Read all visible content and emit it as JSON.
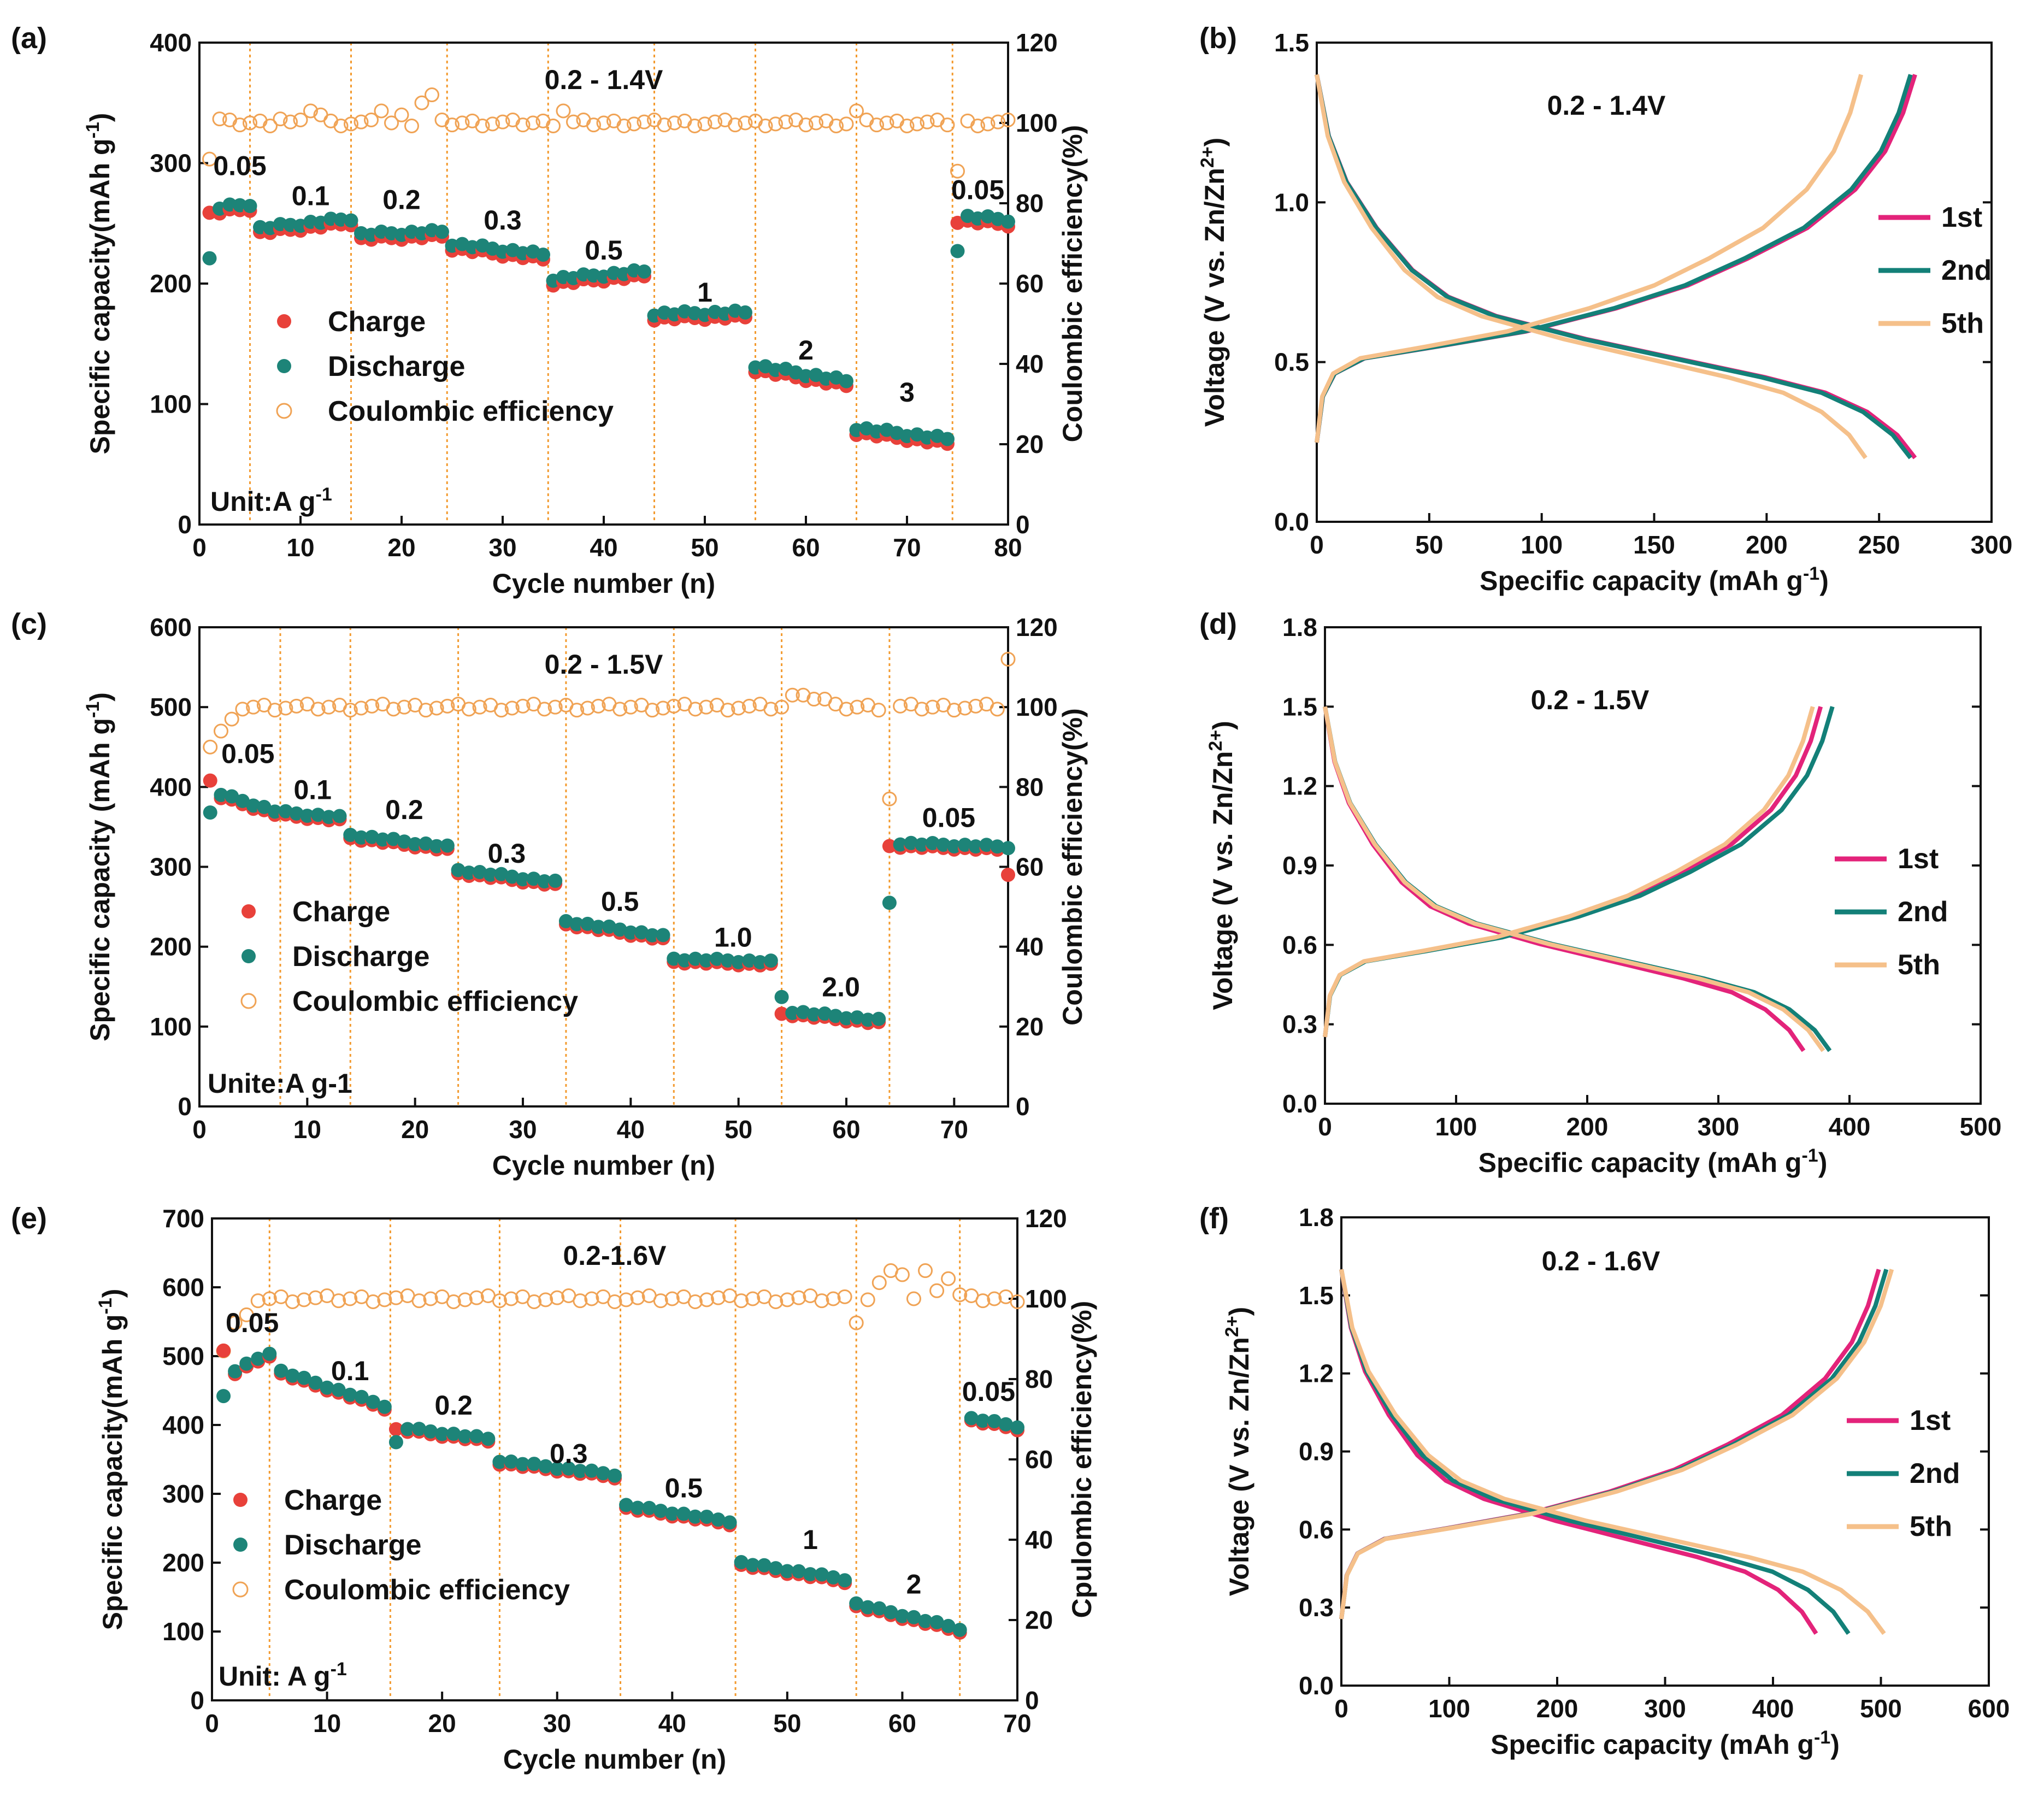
{
  "colors": {
    "charge": "#e8413a",
    "discharge": "#1d8478",
    "ce": "#f0a355",
    "divider": "#f39a2e",
    "c1st": "#e3237a",
    "c2nd": "#138078",
    "c5th": "#f5c08a",
    "axis": "#111111"
  },
  "chart_data": [
    {
      "panel": "(a)",
      "type": "scatter",
      "title": "0.2 - 1.4V",
      "xlabel": "Cycle number (n)",
      "ylabel": "Specific capacity(mAh g-1)",
      "ylabel_parts": [
        "Specific capacity(mAh g",
        "-1",
        ")"
      ],
      "y2label": "Coulombic efficiency(%)",
      "xlim": [
        0,
        80
      ],
      "ylim": [
        0,
        400
      ],
      "y2lim": [
        0,
        120
      ],
      "xticks": [
        "0",
        "10",
        "20",
        "30",
        "40",
        "50",
        "60",
        "70",
        "80"
      ],
      "yticks": [
        "0",
        "100",
        "200",
        "300",
        "400"
      ],
      "y2ticks": [
        "0",
        "20",
        "40",
        "60",
        "80",
        "100",
        "120"
      ],
      "dividers": [
        5,
        15,
        24.5,
        34.5,
        45,
        55,
        65,
        74.5
      ],
      "rate_labels": [
        {
          "text": "0.05",
          "x": 4,
          "y": 290
        },
        {
          "text": "0.1",
          "x": 11,
          "y": 265
        },
        {
          "text": "0.2",
          "x": 20,
          "y": 262
        },
        {
          "text": "0.3",
          "x": 30,
          "y": 245
        },
        {
          "text": "0.5",
          "x": 40,
          "y": 220
        },
        {
          "text": "1",
          "x": 50,
          "y": 185
        },
        {
          "text": "2",
          "x": 60,
          "y": 137
        },
        {
          "text": "3",
          "x": 70,
          "y": 102
        },
        {
          "text": "0.05",
          "x": 77,
          "y": 270
        }
      ],
      "legend": [
        "Charge",
        "Discharge",
        "Coulombic efficiency"
      ],
      "unit": {
        "main": "Unit:A g",
        "sup": "-1"
      },
      "segments": [
        {
          "start": 1,
          "end": 5,
          "from": 262,
          "to": 266,
          "first": 221
        },
        {
          "start": 6,
          "end": 15,
          "from": 246,
          "to": 254
        },
        {
          "start": 16,
          "end": 24,
          "from": 241,
          "to": 243
        },
        {
          "start": 25,
          "end": 34,
          "from": 233,
          "to": 224
        },
        {
          "start": 35,
          "end": 44,
          "from": 204,
          "to": 210
        },
        {
          "start": 45,
          "end": 54,
          "from": 175,
          "to": 176
        },
        {
          "start": 55,
          "end": 64,
          "from": 132,
          "to": 119
        },
        {
          "start": 65,
          "end": 74,
          "from": 80,
          "to": 71
        },
        {
          "start": 75,
          "end": 80,
          "from": 256,
          "to": 253,
          "first": 227
        }
      ],
      "ce_base": 100,
      "ce_spikes": {
        "1": 91,
        "2": 101,
        "8": 101,
        "11": 103,
        "12": 102,
        "18": 103,
        "20": 102,
        "22": 105,
        "23": 107,
        "36": 103,
        "65": 103,
        "75": 88
      }
    },
    {
      "panel": "(b)",
      "type": "line",
      "title": "0.2 - 1.4V",
      "xlabel": "Specific capacity (mAh g-1)",
      "xlabel_parts": [
        "Specific capacity (mAh g",
        "-1",
        ")"
      ],
      "ylabel": "Voltage (V vs. Zn/Zn2+)",
      "xlim": [
        0,
        300
      ],
      "ylim": [
        0,
        1.5
      ],
      "xticks": [
        "0",
        "50",
        "100",
        "150",
        "200",
        "250",
        "300"
      ],
      "yticks": [
        "0.0",
        "0.5",
        "1.0",
        "1.5"
      ],
      "legend": [
        "1st",
        "2nd",
        "5th"
      ],
      "series": [
        {
          "name": "1st",
          "discharge_cap": 266,
          "charge_cap": 266,
          "vmax": 1.4
        },
        {
          "name": "2nd",
          "discharge_cap": 264,
          "charge_cap": 264,
          "vmax": 1.4
        },
        {
          "name": "5th",
          "discharge_cap": 244,
          "charge_cap": 242,
          "vmax": 1.4
        }
      ]
    },
    {
      "panel": "(c)",
      "type": "scatter",
      "title": "0.2 - 1.5V",
      "xlabel": "Cycle number (n)",
      "ylabel": "Specific capacity (mAh g-1)",
      "ylabel_parts": [
        "Specific capacity (mAh g",
        "-1",
        ")"
      ],
      "y2label": "Coulombic efficiency(%)",
      "xlim": [
        0,
        75
      ],
      "ylim": [
        0,
        600
      ],
      "y2lim": [
        0,
        120
      ],
      "xticks": [
        "0",
        "10",
        "20",
        "30",
        "40",
        "50",
        "60",
        "70"
      ],
      "yticks": [
        "0",
        "100",
        "200",
        "300",
        "400",
        "500",
        "600"
      ],
      "y2ticks": [
        "0",
        "20",
        "40",
        "60",
        "80",
        "100",
        "120"
      ],
      "dividers": [
        7.5,
        14,
        24,
        34,
        44,
        54,
        64
      ],
      "rate_labels": [
        {
          "text": "0.05",
          "x": 4.5,
          "y": 430
        },
        {
          "text": "0.1",
          "x": 10.5,
          "y": 385
        },
        {
          "text": "0.2",
          "x": 19,
          "y": 360
        },
        {
          "text": "0.3",
          "x": 28.5,
          "y": 305
        },
        {
          "text": "0.5",
          "x": 39,
          "y": 245
        },
        {
          "text": "1.0",
          "x": 49.5,
          "y": 200
        },
        {
          "text": "2.0",
          "x": 59.5,
          "y": 138
        },
        {
          "text": "0.05",
          "x": 69.5,
          "y": 350
        }
      ],
      "legend": [
        "Charge",
        "Discharge",
        "Coulombic efficiency"
      ],
      "unit": {
        "main": "Unite:A g-1",
        "sup": ""
      },
      "segments": [
        {
          "start": 1,
          "end": 7,
          "from": 395,
          "to": 370,
          "first": 368,
          "charge_first": 408
        },
        {
          "start": 8,
          "end": 13,
          "from": 368,
          "to": 362
        },
        {
          "start": 14,
          "end": 23,
          "from": 340,
          "to": 325
        },
        {
          "start": 24,
          "end": 33,
          "from": 296,
          "to": 281
        },
        {
          "start": 34,
          "end": 43,
          "from": 232,
          "to": 213
        },
        {
          "start": 44,
          "end": 53,
          "from": 185,
          "to": 181
        },
        {
          "start": 54,
          "end": 63,
          "from": 120,
          "to": 108,
          "first": 137
        },
        {
          "start": 64,
          "end": 75,
          "from": 330,
          "to": 325,
          "first": 255,
          "charge_last": 290
        }
      ],
      "ce_base": 100,
      "ce_spikes": {
        "1": 90,
        "2": 94,
        "3": 97,
        "55": 103,
        "56": 103,
        "57": 102,
        "58": 102,
        "64": 77,
        "75": 112
      }
    },
    {
      "panel": "(d)",
      "type": "line",
      "title": "0.2 - 1.5V",
      "xlabel": "Specific capacity (mAh g-1)",
      "xlabel_parts": [
        "Specific capacity (mAh g",
        "-1",
        ")"
      ],
      "ylabel": "Voltage (V vs. Zn/Zn2+)",
      "xlim": [
        0,
        500
      ],
      "ylim": [
        0,
        1.8
      ],
      "xticks": [
        "0",
        "100",
        "200",
        "300",
        "400",
        "500"
      ],
      "yticks": [
        "0.0",
        "0.3",
        "0.6",
        "0.9",
        "1.2",
        "1.5",
        "1.8"
      ],
      "legend": [
        "1st",
        "2nd",
        "5th"
      ],
      "series": [
        {
          "name": "1st",
          "discharge_cap": 365,
          "charge_cap": 378,
          "vmax": 1.5
        },
        {
          "name": "2nd",
          "discharge_cap": 385,
          "charge_cap": 387,
          "vmax": 1.5
        },
        {
          "name": "5th",
          "discharge_cap": 380,
          "charge_cap": 372,
          "vmax": 1.5
        }
      ]
    },
    {
      "panel": "(e)",
      "type": "scatter",
      "title": "0.2-1.6V",
      "xlabel": "Cycle number (n)",
      "ylabel": "Specific capacity(mAh g-1)",
      "ylabel_parts": [
        "Specific capacity(mAh g",
        "-1",
        ")"
      ],
      "y2label": "Cpulombic efficiency(%)",
      "xlim": [
        0,
        70
      ],
      "ylim": [
        0,
        700
      ],
      "y2lim": [
        0,
        120
      ],
      "xticks": [
        "0",
        "10",
        "20",
        "30",
        "40",
        "50",
        "60",
        "70"
      ],
      "yticks": [
        "0",
        "100",
        "200",
        "300",
        "400",
        "500",
        "600",
        "700"
      ],
      "y2ticks": [
        "0",
        "20",
        "40",
        "60",
        "80",
        "100",
        "120"
      ],
      "dividers": [
        5,
        15.5,
        25,
        35.5,
        45.5,
        56,
        65
      ],
      "rate_labels": [
        {
          "text": "0.05",
          "x": 3.5,
          "y": 535
        },
        {
          "text": "0.1",
          "x": 12,
          "y": 465
        },
        {
          "text": "0.2",
          "x": 21,
          "y": 415
        },
        {
          "text": "0.3",
          "x": 31,
          "y": 345
        },
        {
          "text": "0.5",
          "x": 41,
          "y": 295
        },
        {
          "text": "1",
          "x": 52,
          "y": 220
        },
        {
          "text": "2",
          "x": 61,
          "y": 155
        },
        {
          "text": "0.05",
          "x": 67.5,
          "y": 435
        }
      ],
      "legend": [
        "Charge",
        "Discharge",
        "Coulombic efficiency"
      ],
      "unit": {
        "main": "Unit: A g",
        "sup": "-1"
      },
      "segments": [
        {
          "start": 1,
          "end": 5,
          "from": 470,
          "to": 505,
          "first": 442,
          "charge_first": 508
        },
        {
          "start": 6,
          "end": 15,
          "from": 478,
          "to": 428
        },
        {
          "start": 16,
          "end": 24,
          "from": 397,
          "to": 380,
          "first": 375
        },
        {
          "start": 25,
          "end": 35,
          "from": 348,
          "to": 328
        },
        {
          "start": 36,
          "end": 45,
          "from": 283,
          "to": 260
        },
        {
          "start": 46,
          "end": 55,
          "from": 200,
          "to": 176
        },
        {
          "start": 56,
          "end": 65,
          "from": 140,
          "to": 104
        },
        {
          "start": 66,
          "end": 70,
          "from": 410,
          "to": 398,
          "first": 410
        }
      ],
      "ce_base": 100,
      "ce_spikes": {
        "1": 87,
        "2": 94,
        "3": 96,
        "56": 94,
        "58": 104,
        "59": 107,
        "60": 106,
        "62": 107,
        "63": 102,
        "64": 105,
        "65": 101
      }
    },
    {
      "panel": "(f)",
      "type": "line",
      "title": "0.2 - 1.6V",
      "xlabel": "Specific capacity (mAh g-1)",
      "xlabel_parts": [
        "Specific capacity (mAh  g",
        "-1",
        ")"
      ],
      "ylabel": "Voltage (V vs. Zn/Zn2+)",
      "xlim": [
        0,
        600
      ],
      "ylim": [
        0,
        1.8
      ],
      "xticks": [
        "0",
        "100",
        "200",
        "300",
        "400",
        "500",
        "600"
      ],
      "yticks": [
        "0.0",
        "0.3",
        "0.6",
        "0.9",
        "1.2",
        "1.5",
        "1.8"
      ],
      "legend": [
        "1st",
        "2nd",
        "5th"
      ],
      "series": [
        {
          "name": "1st",
          "discharge_cap": 440,
          "charge_cap": 498,
          "vmax": 1.6
        },
        {
          "name": "2nd",
          "discharge_cap": 470,
          "charge_cap": 505,
          "vmax": 1.6
        },
        {
          "name": "5th",
          "discharge_cap": 503,
          "charge_cap": 510,
          "vmax": 1.6
        }
      ]
    }
  ]
}
